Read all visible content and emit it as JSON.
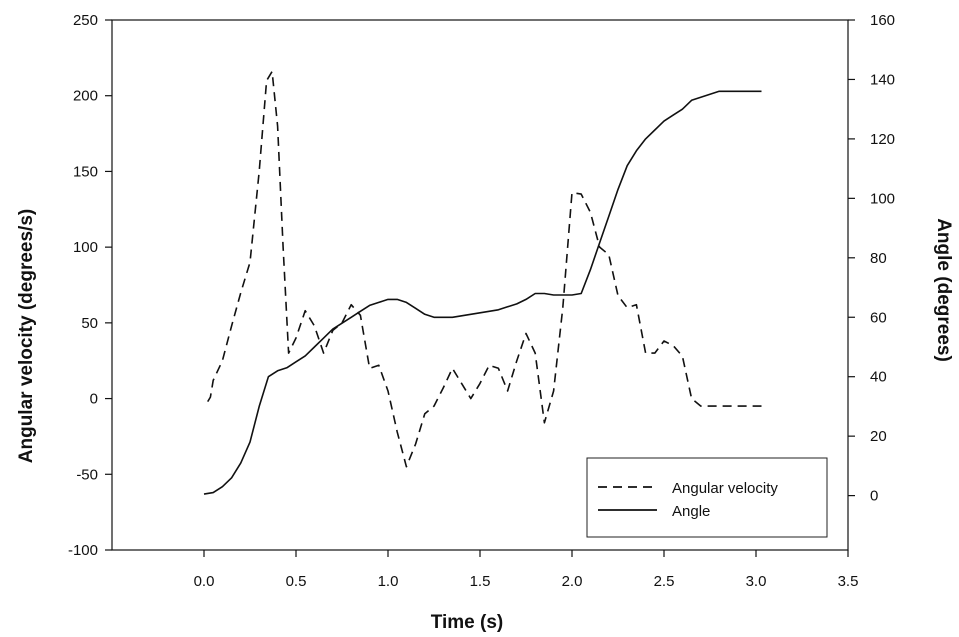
{
  "chart_data": {
    "type": "line",
    "title": "",
    "xlabel": "Time (s)",
    "ylabel": "Angular velocity (degrees/s)",
    "y2label": "Angle (degrees)",
    "xlim": [
      -0.5,
      3.5
    ],
    "ylim": [
      -100,
      250
    ],
    "y2lim": [
      -18.3,
      160
    ],
    "x_ticks": [
      0.0,
      0.5,
      1.0,
      1.5,
      2.0,
      2.5,
      3.0,
      3.5
    ],
    "x_tick_labels": [
      "0.0",
      "0.5",
      "1.0",
      "1.5",
      "2.0",
      "2.5",
      "3.0",
      "3.5"
    ],
    "y_ticks": [
      -100,
      -50,
      0,
      50,
      100,
      150,
      200,
      250
    ],
    "y_tick_labels": [
      "-100",
      "-50",
      "0",
      "50",
      "100",
      "150",
      "200",
      "250"
    ],
    "y2_ticks": [
      0,
      20,
      40,
      60,
      80,
      100,
      120,
      140,
      160
    ],
    "y2_tick_labels": [
      "0",
      "20",
      "40",
      "60",
      "80",
      "100",
      "120",
      "140",
      "160"
    ],
    "grid": false,
    "legend_position": "bottom-right",
    "series": [
      {
        "name": "Angular velocity",
        "axis": "left",
        "style": "dashed",
        "color": "#111111",
        "x": [
          0.02,
          0.035,
          0.05,
          0.1,
          0.15,
          0.2,
          0.25,
          0.3,
          0.34,
          0.37,
          0.4,
          0.43,
          0.46,
          0.5,
          0.55,
          0.6,
          0.65,
          0.7,
          0.75,
          0.8,
          0.85,
          0.9,
          0.95,
          1.0,
          1.05,
          1.1,
          1.15,
          1.2,
          1.25,
          1.3,
          1.35,
          1.4,
          1.45,
          1.5,
          1.55,
          1.6,
          1.65,
          1.7,
          1.75,
          1.8,
          1.85,
          1.9,
          1.95,
          2.0,
          2.05,
          2.1,
          2.15,
          2.2,
          2.25,
          2.3,
          2.35,
          2.4,
          2.45,
          2.5,
          2.55,
          2.6,
          2.65,
          2.7,
          2.75,
          2.8,
          2.85,
          2.9,
          2.95,
          3.0,
          3.03
        ],
        "y": [
          -2,
          1,
          12,
          25,
          48,
          70,
          90,
          150,
          210,
          216,
          180,
          100,
          30,
          40,
          58,
          48,
          30,
          45,
          50,
          62,
          55,
          20,
          22,
          5,
          -22,
          -45,
          -30,
          -10,
          -5,
          7,
          20,
          10,
          0,
          10,
          22,
          20,
          5,
          25,
          43,
          30,
          -16,
          5,
          60,
          136,
          135,
          123,
          100,
          95,
          68,
          60,
          62,
          30,
          30,
          38,
          35,
          28,
          0,
          -5,
          -5,
          -5,
          -5,
          -5,
          -5,
          -5,
          -5
        ]
      },
      {
        "name": "Angle",
        "axis": "right",
        "style": "solid",
        "color": "#111111",
        "x": [
          0.0,
          0.05,
          0.1,
          0.15,
          0.2,
          0.25,
          0.3,
          0.35,
          0.4,
          0.45,
          0.5,
          0.55,
          0.6,
          0.65,
          0.7,
          0.75,
          0.8,
          0.85,
          0.9,
          0.95,
          1.0,
          1.05,
          1.1,
          1.15,
          1.2,
          1.25,
          1.3,
          1.35,
          1.4,
          1.45,
          1.5,
          1.55,
          1.6,
          1.65,
          1.7,
          1.75,
          1.8,
          1.85,
          1.9,
          1.95,
          2.0,
          2.05,
          2.1,
          2.15,
          2.2,
          2.25,
          2.3,
          2.35,
          2.4,
          2.45,
          2.5,
          2.55,
          2.6,
          2.65,
          2.7,
          2.75,
          2.8,
          2.85,
          2.9,
          2.95,
          3.0,
          3.03
        ],
        "y": [
          0.5,
          1,
          3,
          6,
          11,
          18,
          30,
          40,
          42,
          43,
          45,
          47,
          50,
          53,
          56,
          58,
          60,
          62,
          64,
          65,
          66,
          66,
          65,
          63,
          61,
          60,
          60,
          60,
          60.5,
          61,
          61.5,
          62,
          62.5,
          63.5,
          64.5,
          66,
          68,
          68,
          67.5,
          67.5,
          67.5,
          68,
          76,
          85,
          94,
          103,
          111,
          116,
          120,
          123,
          126,
          128,
          130,
          133,
          134,
          135,
          136,
          136,
          136,
          136,
          136,
          136
        ]
      }
    ]
  }
}
